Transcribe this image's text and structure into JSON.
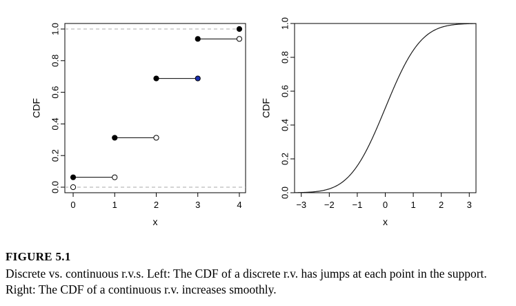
{
  "figure": {
    "label": "FIGURE 5.1",
    "caption": "Discrete vs. continuous r.v.s. Left: The CDF of a discrete r.v. has jumps at each point in the support. Right: The CDF of a continuous r.v. increases smoothly."
  },
  "chart_data": [
    {
      "type": "line",
      "subtype": "step",
      "title": "",
      "xlabel": "x",
      "ylabel": "CDF",
      "xlim": [
        -0.2,
        4.15
      ],
      "ylim": [
        -0.035,
        1.035
      ],
      "xticks": [
        0,
        1,
        2,
        3,
        4
      ],
      "yticks": [
        0.0,
        0.2,
        0.4,
        0.6,
        0.8,
        1.0
      ],
      "reference_lines": [
        0,
        1
      ],
      "grid": false,
      "steps": [
        {
          "x_start": 0,
          "x_end": 1,
          "y": 0.0625,
          "start_color": "#000000",
          "end_open": true
        },
        {
          "x_start": 1,
          "x_end": 2,
          "y": 0.3125,
          "start_color": "#000000",
          "end_open": true
        },
        {
          "x_start": 2,
          "x_end": 3,
          "y": 0.6875,
          "start_color": "#000000",
          "end_open": false,
          "end_color": "#1a2fb0"
        },
        {
          "x_start": 3,
          "x_end": 4,
          "y": 0.9375,
          "start_color": "#000000",
          "end_open": true
        }
      ],
      "open_points": [
        {
          "x": 0,
          "y": 0
        }
      ],
      "closed_points": [
        {
          "x": 4,
          "y": 1.0,
          "color": "#000000"
        }
      ]
    },
    {
      "type": "line",
      "title": "",
      "xlabel": "x",
      "ylabel": "CDF",
      "xlim": [
        -3.24,
        3.24
      ],
      "ylim": [
        0,
        1
      ],
      "xticks": [
        -3,
        -2,
        -1,
        0,
        1,
        2,
        3
      ],
      "yticks": [
        0.0,
        0.2,
        0.4,
        0.6,
        0.8,
        1.0
      ],
      "grid": false,
      "function": "normal_cdf",
      "x_range": [
        -3.24,
        3.24
      ]
    }
  ]
}
